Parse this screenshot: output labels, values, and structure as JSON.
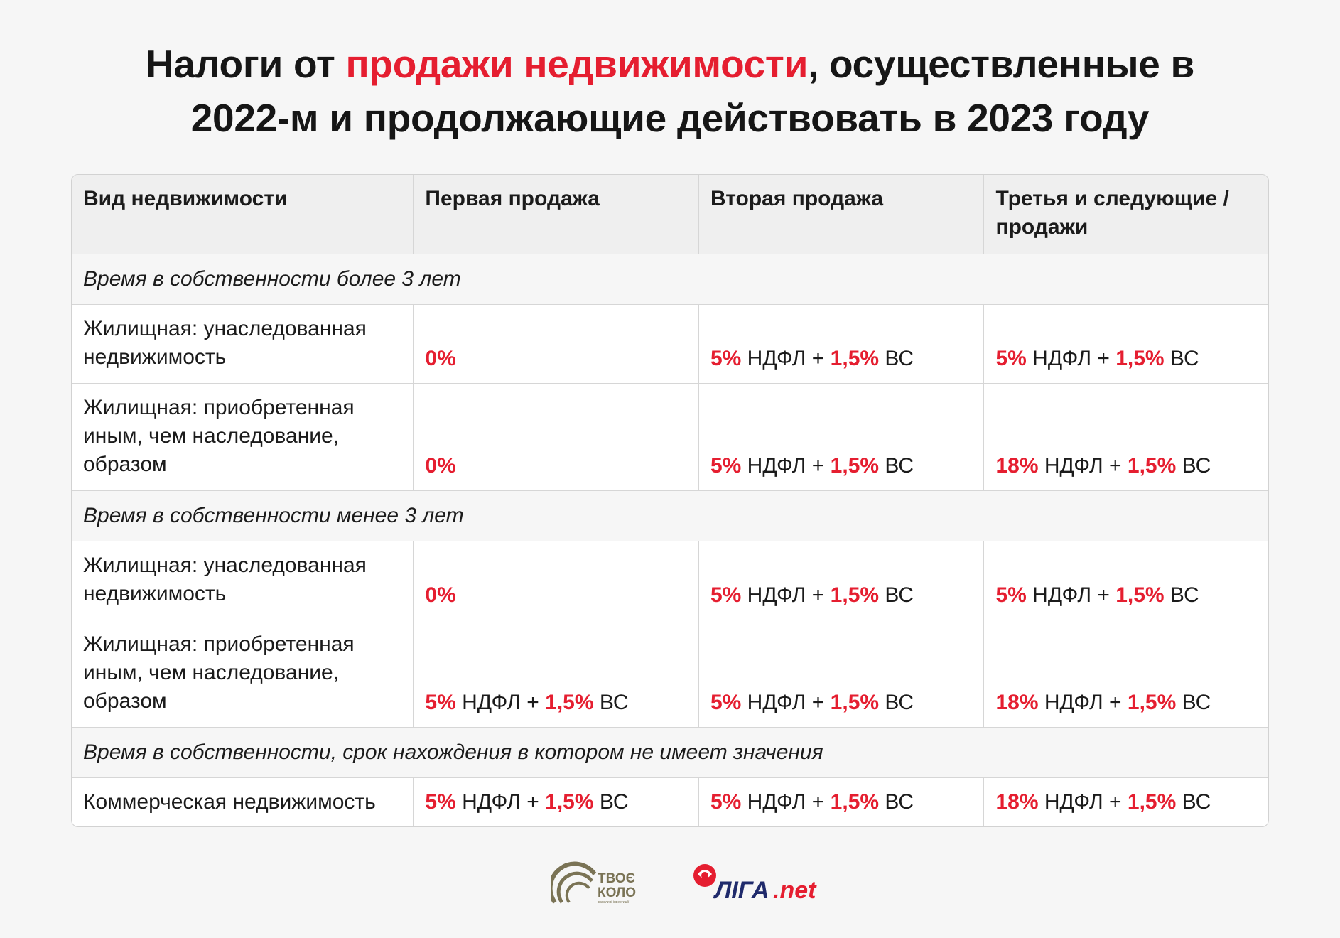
{
  "title": {
    "part1": "Налоги от ",
    "highlight": "продажи недвижимости",
    "part2": ", осуществленные в",
    "line2": "2022-м и продолжающие действовать в 2023 году"
  },
  "table": {
    "headers": [
      "Вид недвижимости",
      "Первая продажа",
      "Вторая продажа",
      "Третья и следующие / продажи"
    ],
    "sections": [
      {
        "label": "Время в собственности более 3 лет",
        "rows": [
          {
            "type": "Жилищная: унаследованная недвижимость",
            "first": {
              "rate": "0%",
              "rest": "",
              "vs_rate": "",
              "vs_rest": ""
            },
            "second": {
              "rate": "5%",
              "rest": " НДФЛ + ",
              "vs_rate": "1,5%",
              "vs_rest": " ВС"
            },
            "third": {
              "rate": "5%",
              "rest": " НДФЛ + ",
              "vs_rate": "1,5%",
              "vs_rest": " ВС"
            }
          },
          {
            "type": "Жилищная: приобретенная иным, чем наследование, образом",
            "first": {
              "rate": "0%",
              "rest": "",
              "vs_rate": "",
              "vs_rest": ""
            },
            "second": {
              "rate": "5%",
              "rest": " НДФЛ + ",
              "vs_rate": "1,5%",
              "vs_rest": " ВС"
            },
            "third": {
              "rate": "18%",
              "rest": " НДФЛ + ",
              "vs_rate": "1,5%",
              "vs_rest": " ВС"
            }
          }
        ]
      },
      {
        "label": "Время в собственности менее 3 лет",
        "rows": [
          {
            "type": "Жилищная: унаследованная недвижимость",
            "first": {
              "rate": "0%",
              "rest": "",
              "vs_rate": "",
              "vs_rest": ""
            },
            "second": {
              "rate": "5%",
              "rest": " НДФЛ + ",
              "vs_rate": "1,5%",
              "vs_rest": " ВС"
            },
            "third": {
              "rate": "5%",
              "rest": " НДФЛ + ",
              "vs_rate": "1,5%",
              "vs_rest": " ВС"
            }
          },
          {
            "type": "Жилищная: приобретенная иным, чем наследование, образом",
            "first": {
              "rate": "5%",
              "rest": " НДФЛ + ",
              "vs_rate": "1,5%",
              "vs_rest": " ВС"
            },
            "second": {
              "rate": "5%",
              "rest": " НДФЛ + ",
              "vs_rate": "1,5%",
              "vs_rest": " ВС"
            },
            "third": {
              "rate": "18%",
              "rest": " НДФЛ + ",
              "vs_rate": "1,5%",
              "vs_rest": " ВС"
            }
          }
        ]
      },
      {
        "label": "Время в собственности, срок нахождения в котором не имеет значения",
        "rows": [
          {
            "type": "Коммерческая недвижимость",
            "first": {
              "rate": "5%",
              "rest": " НДФЛ + ",
              "vs_rate": "1,5%",
              "vs_rest": " ВС"
            },
            "second": {
              "rate": "5%",
              "rest": " НДФЛ + ",
              "vs_rate": "1,5%",
              "vs_rest": " ВС"
            },
            "third": {
              "rate": "18%",
              "rest": " НДФЛ + ",
              "vs_rate": "1,5%",
              "vs_rest": " ВС"
            }
          }
        ]
      }
    ]
  },
  "footer": {
    "logo1_line1": "ТВОЄ",
    "logo1_line2": "КОЛО",
    "logo1_sub": "зважливі інвестиції",
    "logo2_main": "ЛІГА",
    "logo2_suffix": ".net"
  },
  "colors": {
    "accent": "#e51e30",
    "logo1": "#7a7355"
  }
}
